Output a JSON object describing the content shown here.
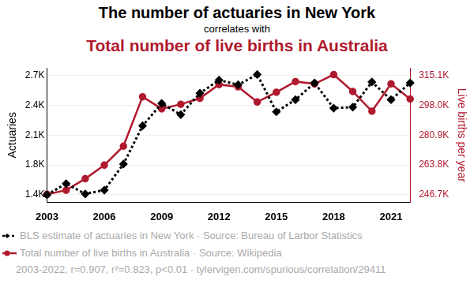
{
  "chart_data": {
    "type": "line",
    "title": "The number of actuaries in New York",
    "subtitle": [
      "correlates with",
      "Total number of live births in Australia"
    ],
    "ylabel": "Actuaries",
    "y2label": "Live births per year",
    "x": [
      2003,
      2004,
      2005,
      2006,
      2007,
      2008,
      2009,
      2010,
      2011,
      2012,
      2013,
      2014,
      2015,
      2016,
      2017,
      2018,
      2019,
      2020,
      2021,
      2022
    ],
    "xlim": [
      2003,
      2022
    ],
    "xticks": [
      2003,
      2006,
      2009,
      2012,
      2015,
      2018,
      2021
    ],
    "ylim": [
      1350,
      2790
    ],
    "yticks": [
      {
        "value": 1430,
        "label": "1.4K"
      },
      {
        "value": 1750,
        "label": "1.8K"
      },
      {
        "value": 2070,
        "label": "2.1K"
      },
      {
        "value": 2390,
        "label": "2.4K"
      },
      {
        "value": 2710,
        "label": "2.7K"
      }
    ],
    "y2lim": [
      242425,
      319375
    ],
    "y2ticks": [
      {
        "value": 246700,
        "label": "246.7K"
      },
      {
        "value": 263800,
        "label": "263.8K"
      },
      {
        "value": 280900,
        "label": "280.9K"
      },
      {
        "value": 298000,
        "label": "298.0K"
      },
      {
        "value": 315100,
        "label": "315.1K"
      }
    ],
    "grid": true,
    "series": [
      {
        "name": "BLS estimate of actuaries in New York · Source: Bureau of Larbor Statistics",
        "color": "#000000",
        "marker": "diamond",
        "line_style": "dotted",
        "values": [
          1430,
          1550,
          1440,
          1480,
          1760,
          2170,
          2410,
          2290,
          2520,
          2660,
          2610,
          2720,
          2320,
          2450,
          2630,
          2360,
          2370,
          2640,
          2450,
          2630
        ]
      },
      {
        "name": "Total number of live births in Australia · Source: Wikipedia",
        "color": "#b01a2e",
        "marker": "circle",
        "line_style": "solid",
        "axis": "y2",
        "values": [
          247000,
          249300,
          255900,
          263700,
          274600,
          302900,
          296000,
          298600,
          302000,
          309900,
          308600,
          299900,
          305500,
          311600,
          310300,
          315600,
          305900,
          294600,
          310300,
          301600
        ]
      }
    ],
    "annotations": [
      "2003-2022, r=0.907, r²=0.823, p<0.01 · tylervigen.com/spurious/correlation/29411"
    ]
  }
}
